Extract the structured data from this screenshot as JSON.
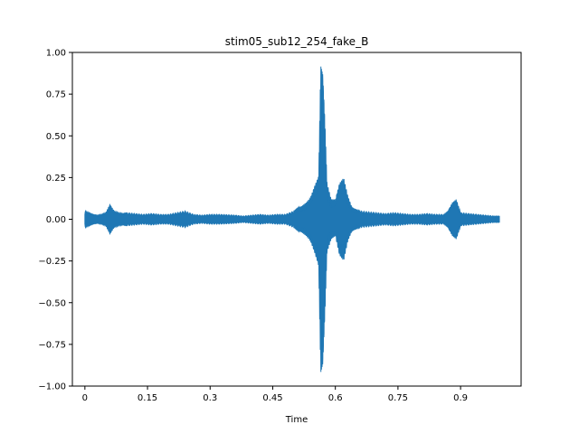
{
  "chart_data": {
    "type": "area",
    "title": "stim05_sub12_254_fake_B",
    "xlabel": "Time",
    "ylabel": "",
    "xlim": [
      -0.03,
      1.045
    ],
    "ylim": [
      -1.0,
      1.0
    ],
    "xticks": [
      0,
      0.15,
      0.3,
      0.45,
      0.6,
      0.75,
      0.9
    ],
    "xtick_labels": [
      "0",
      "0.15",
      "0.3",
      "0.45",
      "0.6",
      "0.75",
      "0.9"
    ],
    "yticks": [
      -1.0,
      -0.75,
      -0.5,
      -0.25,
      0.0,
      0.25,
      0.5,
      0.75,
      1.0
    ],
    "ytick_labels": [
      "−1.00",
      "−0.75",
      "−0.50",
      "−0.25",
      "0.00",
      "0.25",
      "0.50",
      "0.75",
      "1.00"
    ],
    "grid": false,
    "series": [
      {
        "color": "#1f77b4",
        "x": [
          0.0,
          0.01,
          0.02,
          0.03,
          0.04,
          0.05,
          0.06,
          0.07,
          0.08,
          0.09,
          0.1,
          0.12,
          0.14,
          0.16,
          0.18,
          0.2,
          0.22,
          0.24,
          0.26,
          0.28,
          0.3,
          0.32,
          0.34,
          0.36,
          0.38,
          0.4,
          0.42,
          0.44,
          0.46,
          0.48,
          0.5,
          0.51,
          0.52,
          0.53,
          0.54,
          0.55,
          0.56,
          0.565,
          0.57,
          0.575,
          0.58,
          0.59,
          0.6,
          0.61,
          0.62,
          0.63,
          0.64,
          0.65,
          0.66,
          0.68,
          0.7,
          0.72,
          0.74,
          0.76,
          0.78,
          0.8,
          0.82,
          0.84,
          0.86,
          0.87,
          0.88,
          0.89,
          0.9,
          0.92,
          0.94,
          0.96,
          0.98,
          0.993
        ],
        "upper": [
          0.05,
          0.04,
          0.03,
          0.025,
          0.03,
          0.04,
          0.09,
          0.05,
          0.04,
          0.035,
          0.04,
          0.035,
          0.03,
          0.035,
          0.03,
          0.03,
          0.04,
          0.05,
          0.03,
          0.025,
          0.03,
          0.03,
          0.028,
          0.025,
          0.02,
          0.025,
          0.03,
          0.025,
          0.03,
          0.03,
          0.05,
          0.07,
          0.08,
          0.1,
          0.13,
          0.2,
          0.26,
          0.92,
          0.88,
          0.6,
          0.22,
          0.12,
          0.12,
          0.22,
          0.25,
          0.14,
          0.07,
          0.06,
          0.05,
          0.045,
          0.04,
          0.035,
          0.04,
          0.035,
          0.03,
          0.03,
          0.035,
          0.03,
          0.03,
          0.05,
          0.1,
          0.12,
          0.04,
          0.035,
          0.03,
          0.025,
          0.02,
          0.02
        ],
        "lower": [
          -0.05,
          -0.04,
          -0.03,
          -0.025,
          -0.03,
          -0.04,
          -0.09,
          -0.05,
          -0.04,
          -0.035,
          -0.04,
          -0.035,
          -0.03,
          -0.035,
          -0.03,
          -0.03,
          -0.04,
          -0.05,
          -0.03,
          -0.025,
          -0.03,
          -0.03,
          -0.028,
          -0.025,
          -0.02,
          -0.025,
          -0.03,
          -0.025,
          -0.03,
          -0.03,
          -0.05,
          -0.07,
          -0.08,
          -0.1,
          -0.13,
          -0.2,
          -0.28,
          -0.92,
          -0.88,
          -0.58,
          -0.2,
          -0.12,
          -0.1,
          -0.22,
          -0.25,
          -0.13,
          -0.07,
          -0.06,
          -0.05,
          -0.045,
          -0.04,
          -0.035,
          -0.04,
          -0.035,
          -0.03,
          -0.03,
          -0.035,
          -0.03,
          -0.03,
          -0.05,
          -0.1,
          -0.12,
          -0.04,
          -0.035,
          -0.03,
          -0.025,
          -0.02,
          -0.02
        ]
      }
    ]
  }
}
